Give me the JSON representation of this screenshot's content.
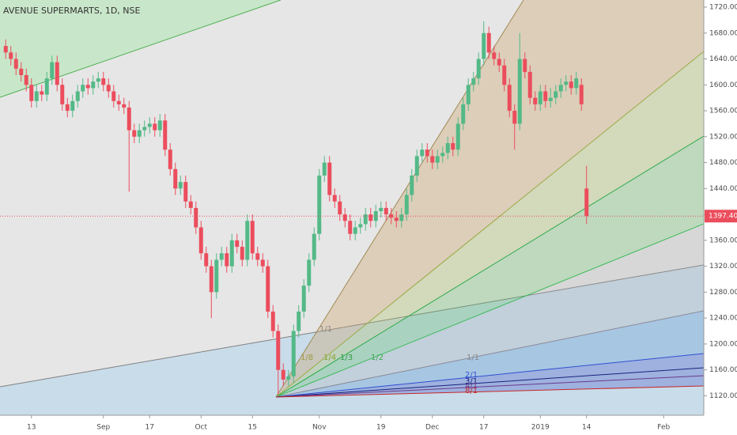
{
  "chart_data": {
    "type": "candlestick",
    "title": "AVENUE SUPERMARTS, 1D, NSE",
    "categories": [
      null,
      null,
      null,
      null,
      null,
      "13",
      null,
      null,
      null,
      null,
      null,
      null,
      null,
      null,
      null,
      null,
      null,
      null,
      null,
      "Sep",
      null,
      null,
      null,
      null,
      null,
      null,
      null,
      null,
      "17",
      null,
      null,
      null,
      null,
      null,
      null,
      null,
      null,
      null,
      "Oct",
      null,
      null,
      null,
      null,
      null,
      null,
      null,
      null,
      null,
      "15",
      null,
      null,
      null,
      null,
      null,
      null,
      null,
      null,
      null,
      null,
      null,
      null,
      "Nov",
      null,
      null,
      null,
      null,
      null,
      null,
      null,
      null,
      null,
      null,
      null,
      "19",
      null,
      null,
      null,
      null,
      null,
      null,
      null,
      null,
      null,
      "Dec",
      null,
      null,
      null,
      null,
      null,
      null,
      null,
      null,
      null,
      "17",
      null,
      null,
      null,
      null,
      null,
      null,
      null,
      null,
      null,
      null,
      "2019",
      null,
      null,
      null,
      null,
      null,
      null,
      null,
      null,
      "14",
      null,
      null,
      null,
      null,
      null,
      null,
      null,
      null,
      null,
      null,
      null,
      null,
      null,
      null,
      "Feb",
      null,
      null,
      null,
      null,
      null,
      null,
      null
    ],
    "open": [
      1660,
      1650,
      1640,
      1625,
      1615,
      1600,
      1575,
      1590,
      1585,
      1610,
      1635,
      1600,
      1570,
      1560,
      1575,
      1590,
      1600,
      1595,
      1605,
      1610,
      1600,
      1590,
      1575,
      1570,
      1565,
      1530,
      1520,
      1530,
      1535,
      1540,
      1530,
      1545,
      1500,
      1470,
      1440,
      1450,
      1420,
      1410,
      1380,
      1340,
      1320,
      1280,
      1330,
      1340,
      1320,
      1360,
      1350,
      1330,
      1390,
      1340,
      1330,
      1320,
      1250,
      1220,
      1160,
      1145,
      1150,
      1220,
      1250,
      1290,
      1330,
      1370,
      1460,
      1480,
      1430,
      1420,
      1400,
      1390,
      1370,
      1380,
      1385,
      1400,
      1390,
      1405,
      1410,
      1400,
      1395,
      1390,
      1400,
      1430,
      1460,
      1490,
      1500,
      1490,
      1480,
      1490,
      1495,
      1510,
      1500,
      1540,
      1570,
      1600,
      1610,
      1640,
      1680,
      1650,
      1640,
      1630,
      1600,
      1560,
      1540,
      1640,
      1620,
      1580,
      1570,
      1590,
      1575,
      1580,
      1590,
      1600,
      1605,
      1595,
      1600,
      1440,
      null,
      null,
      null,
      null,
      null,
      null,
      null,
      null,
      null,
      null,
      null,
      null,
      null,
      null,
      null,
      null,
      null,
      null,
      null,
      null,
      null,
      null
    ],
    "high": [
      1670,
      1660,
      1650,
      1635,
      1625,
      1610,
      1600,
      1600,
      1620,
      1645,
      1645,
      1610,
      1580,
      1585,
      1600,
      1610,
      1610,
      1615,
      1620,
      1620,
      1610,
      1600,
      1585,
      1580,
      1575,
      1540,
      1540,
      1545,
      1550,
      1550,
      1555,
      1555,
      1510,
      1480,
      1460,
      1460,
      1430,
      1420,
      1390,
      1350,
      1330,
      1340,
      1350,
      1350,
      1370,
      1370,
      1360,
      1400,
      1400,
      1350,
      1340,
      1330,
      1260,
      1230,
      1170,
      1160,
      1230,
      1260,
      1300,
      1340,
      1380,
      1470,
      1490,
      1490,
      1440,
      1430,
      1410,
      1400,
      1390,
      1395,
      1410,
      1410,
      1415,
      1420,
      1420,
      1410,
      1405,
      1410,
      1440,
      1470,
      1500,
      1510,
      1510,
      1500,
      1500,
      1505,
      1520,
      1520,
      1550,
      1580,
      1610,
      1620,
      1650,
      1698,
      1690,
      1660,
      1650,
      1640,
      1610,
      1570,
      1680,
      1650,
      1630,
      1590,
      1600,
      1600,
      1595,
      1600,
      1610,
      1615,
      1615,
      1620,
      1610,
      1475,
      null,
      null,
      null,
      null,
      null,
      null,
      null,
      null,
      null,
      null,
      null,
      null,
      null,
      null,
      null,
      null,
      null,
      null,
      null,
      null,
      null,
      null
    ],
    "low": [
      1640,
      1630,
      1615,
      1605,
      1590,
      1565,
      1565,
      1575,
      1575,
      1600,
      1590,
      1560,
      1550,
      1550,
      1565,
      1580,
      1585,
      1585,
      1595,
      1590,
      1580,
      1565,
      1560,
      1555,
      1435,
      1510,
      1510,
      1520,
      1525,
      1520,
      1520,
      1490,
      1460,
      1430,
      1430,
      1410,
      1400,
      1370,
      1330,
      1310,
      1240,
      1270,
      1320,
      1310,
      1310,
      1340,
      1320,
      1320,
      1330,
      1320,
      1310,
      1240,
      1210,
      1122,
      1135,
      1135,
      1140,
      1210,
      1240,
      1280,
      1320,
      1360,
      1450,
      1420,
      1410,
      1390,
      1380,
      1360,
      1360,
      1370,
      1375,
      1380,
      1380,
      1395,
      1390,
      1385,
      1380,
      1380,
      1390,
      1420,
      1450,
      1480,
      1480,
      1470,
      1470,
      1480,
      1485,
      1490,
      1490,
      1530,
      1560,
      1590,
      1600,
      1630,
      1640,
      1630,
      1620,
      1590,
      1550,
      1500,
      1530,
      1610,
      1570,
      1560,
      1560,
      1565,
      1565,
      1570,
      1580,
      1590,
      1585,
      1585,
      1560,
      1385,
      null,
      null,
      null,
      null,
      null,
      null,
      null,
      null,
      null,
      null,
      null,
      null,
      null,
      null,
      null,
      null,
      null,
      null,
      null,
      null,
      null,
      null
    ],
    "close": [
      1650,
      1640,
      1625,
      1615,
      1600,
      1575,
      1590,
      1585,
      1610,
      1635,
      1600,
      1570,
      1560,
      1575,
      1590,
      1600,
      1595,
      1605,
      1610,
      1600,
      1590,
      1575,
      1570,
      1565,
      1530,
      1520,
      1530,
      1535,
      1540,
      1530,
      1545,
      1500,
      1470,
      1440,
      1450,
      1420,
      1410,
      1380,
      1340,
      1320,
      1280,
      1330,
      1340,
      1320,
      1360,
      1350,
      1330,
      1390,
      1340,
      1330,
      1320,
      1250,
      1220,
      1160,
      1145,
      1150,
      1220,
      1250,
      1290,
      1330,
      1370,
      1460,
      1480,
      1430,
      1420,
      1400,
      1390,
      1370,
      1380,
      1385,
      1400,
      1390,
      1405,
      1410,
      1400,
      1395,
      1390,
      1400,
      1430,
      1460,
      1490,
      1500,
      1490,
      1480,
      1490,
      1495,
      1510,
      1500,
      1540,
      1570,
      1600,
      1610,
      1640,
      1680,
      1650,
      1640,
      1630,
      1600,
      1560,
      1540,
      1640,
      1620,
      1580,
      1570,
      1590,
      1575,
      1580,
      1590,
      1600,
      1605,
      1595,
      1610,
      1570,
      1397.4,
      null,
      null,
      null,
      null,
      null,
      null,
      null,
      null,
      null,
      null,
      null,
      null,
      null,
      null,
      null,
      null,
      null,
      null,
      null,
      null,
      null,
      null
    ],
    "up_color": "#53b987",
    "down_color": "#eb4d5c",
    "ylim": [
      1090,
      1731
    ],
    "yticks": [
      {
        "value": 1120,
        "label": "1120.00"
      },
      {
        "value": 1160,
        "label": "1160.00"
      },
      {
        "value": 1200,
        "label": "1200.00"
      },
      {
        "value": 1240,
        "label": "1240.00"
      },
      {
        "value": 1280,
        "label": "1280.00"
      },
      {
        "value": 1320,
        "label": "1320.00"
      },
      {
        "value": 1360,
        "label": "1360.00"
      },
      {
        "value": 1400,
        "label": "1400.00"
      },
      {
        "value": 1440,
        "label": "1440.00"
      },
      {
        "value": 1480,
        "label": "1480.00"
      },
      {
        "value": 1520,
        "label": "1520.00"
      },
      {
        "value": 1560,
        "label": "1560.00"
      },
      {
        "value": 1600,
        "label": "1600.00"
      },
      {
        "value": 1640,
        "label": "1640.00"
      },
      {
        "value": 1680,
        "label": "1680.00"
      },
      {
        "value": 1720,
        "label": "1720.00"
      }
    ],
    "last_price": {
      "value": 1397.4,
      "label": "1397.40"
    },
    "fan_labels": [
      "1/8",
      "1/4",
      "1/3",
      "1/2",
      "1/1",
      "1/1",
      "2/1",
      "3/1",
      "4/1",
      "8/1"
    ]
  }
}
